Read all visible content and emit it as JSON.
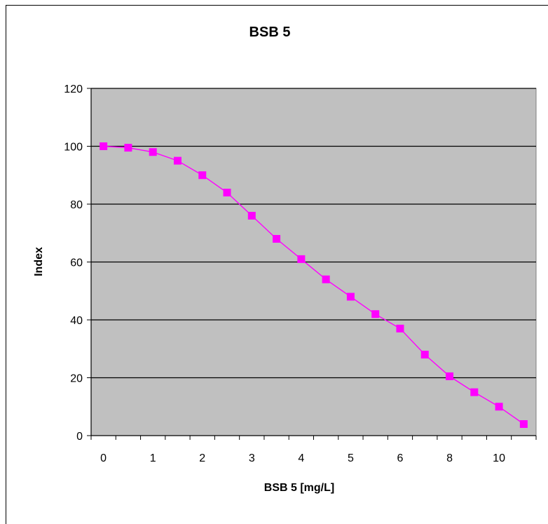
{
  "chart_data": {
    "type": "line",
    "title": "BSB 5",
    "xlabel": "BSB 5 [mg/L]",
    "ylabel": "Index",
    "ylim": [
      0,
      120
    ],
    "y_ticks": [
      "0",
      "20",
      "40",
      "60",
      "80",
      "100",
      "120"
    ],
    "categories": [
      "0",
      "",
      "1",
      "",
      "2",
      "",
      "3",
      "",
      "4",
      "",
      "5",
      "",
      "6",
      "",
      "8",
      "",
      "10",
      ""
    ],
    "series": [
      {
        "values": [
          100,
          99.5,
          98,
          95,
          90,
          84,
          76,
          68,
          61,
          54,
          48,
          42,
          37,
          28,
          20.5,
          15,
          10,
          4
        ],
        "line_color": "#ff00ff",
        "marker": "square",
        "marker_color": "#ff00ff"
      }
    ],
    "plot_background": "#c0c0c0",
    "gridlines": "horizontal",
    "legend": "none"
  }
}
